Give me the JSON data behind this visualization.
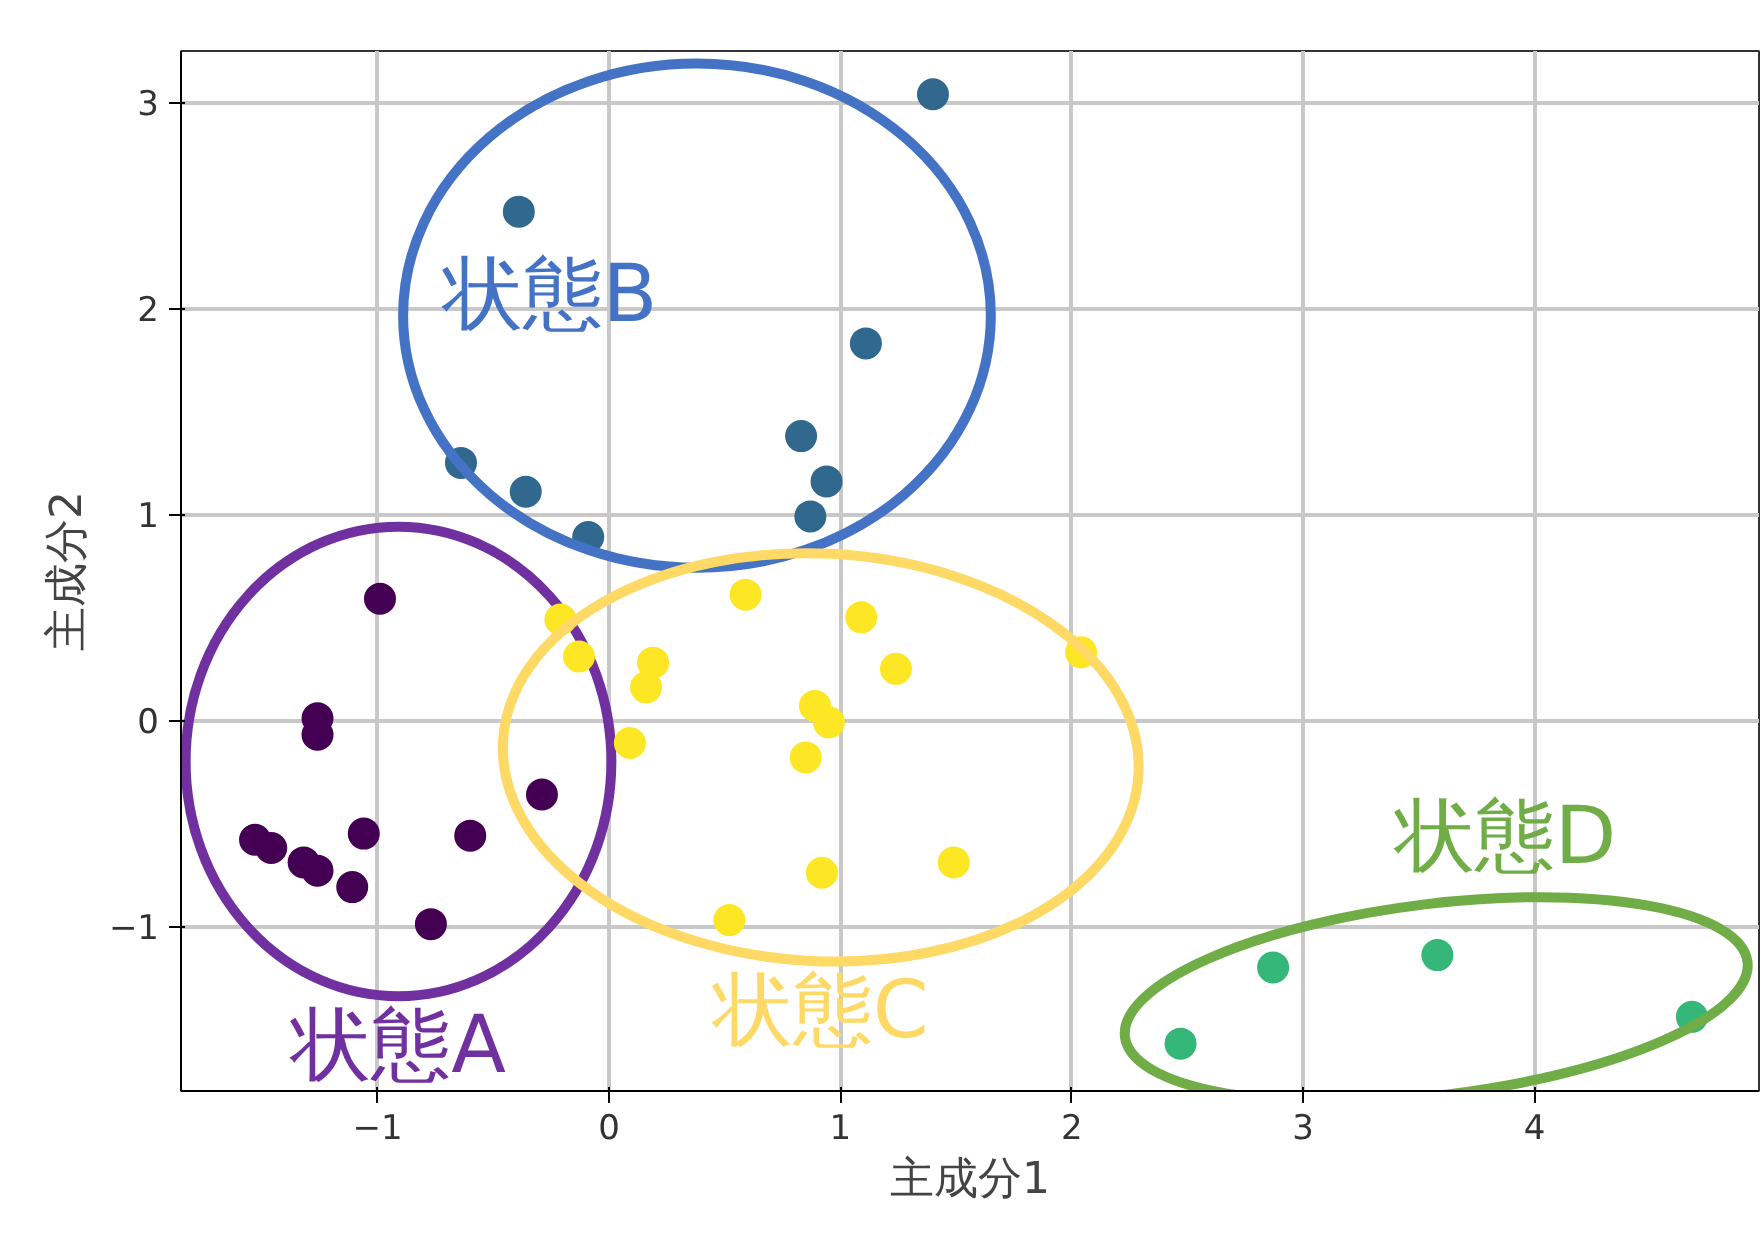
{
  "chart_data": {
    "type": "scatter",
    "xlabel": "主成分1",
    "ylabel": "主成分2",
    "xlim": [
      -1.85,
      4.97
    ],
    "ylim": [
      -1.8,
      3.25
    ],
    "xticks": [
      {
        "value": -1,
        "label": "−1"
      },
      0,
      1,
      2,
      3,
      4
    ],
    "yticks": [
      {
        "value": -1,
        "label": "−1"
      },
      0,
      1,
      2,
      3
    ],
    "grid": true,
    "marker": "circle",
    "series": [
      {
        "name": "状態A",
        "color": "#440154",
        "x": [
          -0.99,
          -1.26,
          -1.26,
          -0.29,
          -1.53,
          -1.46,
          -1.32,
          -1.26,
          -1.06,
          -1.11,
          -0.6,
          -0.77
        ],
        "values": [
          0.59,
          0.01,
          -0.07,
          -0.36,
          -0.58,
          -0.62,
          -0.69,
          -0.73,
          -0.55,
          -0.81,
          -0.56,
          -0.99
        ]
      },
      {
        "name": "状態B",
        "color": "#31688e",
        "x": [
          1.4,
          -0.39,
          1.11,
          -0.64,
          -0.36,
          0.83,
          0.94,
          -0.09,
          0.87
        ],
        "values": [
          3.04,
          2.47,
          1.83,
          1.25,
          1.11,
          1.38,
          1.16,
          0.89,
          0.99
        ]
      },
      {
        "name": "状態C",
        "color": "#fde725",
        "x": [
          -0.21,
          -0.13,
          0.19,
          0.16,
          0.09,
          0.59,
          1.09,
          1.24,
          0.89,
          0.95,
          0.85,
          2.04,
          0.92,
          1.49,
          0.52
        ],
        "values": [
          0.49,
          0.31,
          0.28,
          0.16,
          -0.11,
          0.61,
          0.5,
          0.25,
          0.07,
          -0.01,
          -0.18,
          0.33,
          -0.74,
          -0.69,
          -0.97
        ]
      },
      {
        "name": "状態D",
        "color": "#35b779",
        "x": [
          2.47,
          2.87,
          3.58,
          4.68
        ],
        "values": [
          -1.57,
          -1.2,
          -1.14,
          -1.44
        ]
      }
    ]
  }
}
